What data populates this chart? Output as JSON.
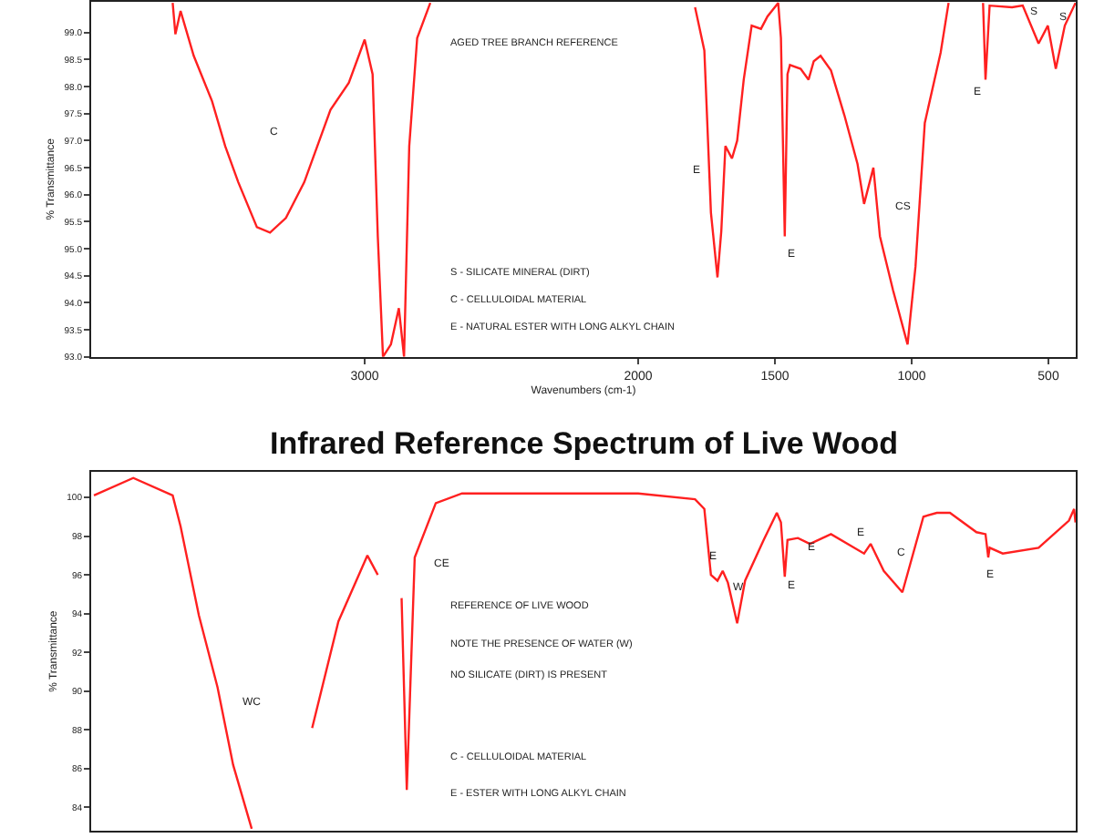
{
  "chart_data": [
    {
      "type": "line",
      "xlabel": "Wavenumbers (cm-1)",
      "ylabel": "% Transmittance",
      "series": [
        {
          "color": "#ff2020",
          "x": [
            3702,
            3692,
            3673,
            3625,
            3558,
            3510,
            3462,
            3394,
            3346,
            3288,
            3221,
            3125,
            3058,
            3000,
            2971,
            2952,
            2933,
            2904,
            2875,
            2856,
            2837,
            2808,
            2760,
            2300,
            1792,
            1758,
            1734,
            1710,
            1696,
            1681,
            1657,
            1638,
            1614,
            1585,
            1551,
            1527,
            1488,
            1478,
            1464,
            1454,
            1445,
            1406,
            1377,
            1358,
            1333,
            1295,
            1246,
            1198,
            1174,
            1140,
            1116,
            1068,
            1015,
            986,
            952,
            894,
            865,
            800,
            739,
            730,
            715,
            633,
            594,
            536,
            502,
            473,
            440,
            401
          ],
          "values": [
            99.55,
            98.97,
            99.4,
            98.57,
            97.73,
            96.9,
            96.23,
            95.4,
            95.3,
            95.57,
            96.23,
            97.57,
            98.07,
            98.87,
            98.23,
            95.23,
            93.0,
            93.23,
            93.9,
            93.0,
            96.9,
            98.9,
            99.55,
            null,
            99.47,
            98.67,
            95.67,
            94.47,
            95.33,
            96.9,
            96.67,
            97.0,
            98.13,
            99.13,
            99.07,
            99.3,
            99.55,
            98.9,
            95.23,
            98.23,
            98.4,
            98.33,
            98.13,
            98.47,
            98.57,
            98.3,
            97.47,
            96.57,
            95.83,
            96.5,
            95.23,
            94.23,
            93.23,
            94.67,
            97.33,
            98.63,
            99.55,
            null,
            99.55,
            98.13,
            99.5,
            99.47,
            99.5,
            98.8,
            99.13,
            98.33,
            99.13,
            99.55
          ]
        }
      ],
      "xlim": [
        4000,
        400
      ],
      "xticks": [
        3000,
        2000,
        1500,
        1000,
        500
      ],
      "ylim": [
        93.0,
        99.57
      ],
      "yticks": [
        {
          "value": 93.0,
          "label": "93.0"
        },
        {
          "value": 93.5,
          "label": "93.5"
        },
        {
          "value": 94.0,
          "label": "94.0"
        },
        {
          "value": 94.5,
          "label": "94.5"
        },
        {
          "value": 95.0,
          "label": "95.0"
        },
        {
          "value": 95.5,
          "label": "95.5"
        },
        {
          "value": 96.0,
          "label": "96.0"
        },
        {
          "value": 96.5,
          "label": "96.5"
        },
        {
          "value": 97.0,
          "label": "97.0"
        },
        {
          "value": 97.5,
          "label": "97.5"
        },
        {
          "value": 98.0,
          "label": "98.0"
        },
        {
          "value": 98.5,
          "label": "98.5"
        },
        {
          "value": 99.0,
          "label": "99.0"
        }
      ],
      "annotations": [
        "AGED TREE BRANCH REFERENCE",
        "S - SILICATE MINERAL (DIRT)",
        "C - CELLULOIDAL MATERIAL",
        "E - NATURAL ESTER WITH LONG ALKYL CHAIN",
        "C",
        "E",
        "E",
        "CS",
        "E",
        "S",
        "S"
      ]
    },
    {
      "type": "line",
      "title": "Infrared Reference Spectrum of Live Wood",
      "ylabel": "% Transmittance",
      "series": [
        {
          "color": "#ff2020",
          "x": [
            3990,
            3846,
            3702,
            3673,
            3606,
            3538,
            3481,
            3413,
            3365,
            3317,
            3192,
            3096,
            2990,
            2952,
            2913,
            2865,
            2846,
            2817,
            2740,
            2644,
            2000,
            1792,
            1758,
            1734,
            1710,
            1691,
            1672,
            1638,
            1609,
            1541,
            1493,
            1478,
            1464,
            1454,
            1416,
            1372,
            1295,
            1174,
            1150,
            1102,
            1034,
            957,
            908,
            860,
            763,
            730,
            720,
            715,
            667,
            536,
            425,
            406,
            401
          ],
          "values": [
            100.1,
            101.0,
            100.1,
            98.5,
            93.9,
            90.2,
            86.2,
            82.9,
            null,
            null,
            88.1,
            93.6,
            97.0,
            96.0,
            null,
            94.8,
            84.9,
            96.9,
            99.7,
            100.2,
            100.2,
            99.9,
            99.4,
            96.0,
            95.7,
            96.2,
            95.6,
            93.5,
            95.7,
            97.8,
            99.2,
            98.7,
            95.9,
            97.8,
            97.9,
            97.6,
            98.1,
            97.1,
            97.6,
            96.2,
            95.1,
            99.0,
            99.2,
            99.2,
            98.2,
            98.1,
            96.9,
            97.4,
            97.1,
            97.4,
            98.8,
            99.4,
            98.7
          ]
        }
      ],
      "xlim": [
        4000,
        400
      ],
      "ylim": [
        82.8,
        101.3
      ],
      "yticks": [
        84,
        86,
        88,
        90,
        92,
        94,
        96,
        98,
        100
      ],
      "tick_labels": "y",
      "annotations": [
        "REFERENCE OF LIVE WOOD",
        "NOTE THE PRESENCE OF WATER (W)",
        "NO SILICATE (DIRT) IS PRESENT",
        "C - CELLULOIDAL MATERIAL",
        "E - ESTER WITH LONG ALKYL CHAIN",
        "CE",
        "WC",
        "E",
        "W",
        "E",
        "E",
        "E",
        "C",
        "E"
      ]
    }
  ]
}
